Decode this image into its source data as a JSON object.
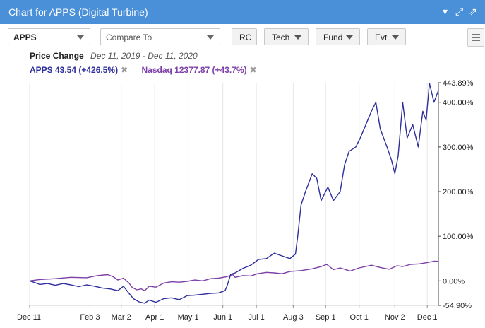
{
  "header": {
    "title": "Chart for APPS (Digital Turbine)",
    "controls": {
      "collapse_icon": "caret-down-icon",
      "expand_icon": "expand-icon",
      "popout_icon": "external-link-icon"
    }
  },
  "toolbar": {
    "symbol": "APPS",
    "compare_placeholder": "Compare To",
    "rc_label": "RC",
    "tech_label": "Tech",
    "fund_label": "Fund",
    "evt_label": "Evt",
    "menu_icon": "hamburger-icon"
  },
  "price_change": {
    "label": "Price Change",
    "range": "Dec 11, 2019 - Dec 11, 2020"
  },
  "legend": {
    "apps": "APPS 43.54 (+426.5%)",
    "nasdaq": "Nasdaq 12377.87 (+43.7%)"
  },
  "colors": {
    "apps": "#2e2e9e",
    "nasdaq": "#7d3fa8",
    "header": "#4a90d9"
  },
  "chart_data": {
    "type": "line",
    "ylim": [
      -54.9,
      443.89
    ],
    "y_ticks": [
      {
        "value": 443.89,
        "label": "443.89%"
      },
      {
        "value": 400,
        "label": "400.00%"
      },
      {
        "value": 300,
        "label": "300.00%"
      },
      {
        "value": 200,
        "label": "200.00%"
      },
      {
        "value": 100,
        "label": "100.00%"
      },
      {
        "value": 0,
        "label": "0.00%"
      },
      {
        "value": -54.9,
        "label": "-54.90%"
      }
    ],
    "x_range": [
      "2019-12-11",
      "2020-12-11"
    ],
    "x_ticks": [
      {
        "date": "2019-12-11",
        "label": "Dec 11"
      },
      {
        "date": "2020-02-03",
        "label": "Feb 3"
      },
      {
        "date": "2020-03-02",
        "label": "Mar 2"
      },
      {
        "date": "2020-04-01",
        "label": "Apr 1"
      },
      {
        "date": "2020-05-01",
        "label": "May 1"
      },
      {
        "date": "2020-06-01",
        "label": "Jun 1"
      },
      {
        "date": "2020-07-01",
        "label": "Jul 1"
      },
      {
        "date": "2020-08-03",
        "label": "Aug 3"
      },
      {
        "date": "2020-09-01",
        "label": "Sep 1"
      },
      {
        "date": "2020-10-01",
        "label": "Oct 1"
      },
      {
        "date": "2020-11-02",
        "label": "Nov 2"
      },
      {
        "date": "2020-12-01",
        "label": "Dec 1"
      }
    ],
    "series": [
      {
        "name": "APPS 43.54 (+426.5%)",
        "points": [
          [
            "2019-12-11",
            0
          ],
          [
            "2019-12-16",
            -4
          ],
          [
            "2019-12-20",
            -8
          ],
          [
            "2019-12-27",
            -6
          ],
          [
            "2020-01-03",
            -10
          ],
          [
            "2020-01-10",
            -6
          ],
          [
            "2020-01-17",
            -9
          ],
          [
            "2020-01-24",
            -13
          ],
          [
            "2020-01-31",
            -9
          ],
          [
            "2020-02-07",
            -12
          ],
          [
            "2020-02-14",
            -16
          ],
          [
            "2020-02-21",
            -18
          ],
          [
            "2020-02-28",
            -22
          ],
          [
            "2020-03-04",
            -12
          ],
          [
            "2020-03-09",
            -28
          ],
          [
            "2020-03-13",
            -40
          ],
          [
            "2020-03-18",
            -47
          ],
          [
            "2020-03-23",
            -50
          ],
          [
            "2020-03-27",
            -43
          ],
          [
            "2020-04-02",
            -48
          ],
          [
            "2020-04-09",
            -40
          ],
          [
            "2020-04-16",
            -38
          ],
          [
            "2020-04-23",
            -42
          ],
          [
            "2020-04-30",
            -33
          ],
          [
            "2020-05-07",
            -32
          ],
          [
            "2020-05-14",
            -30
          ],
          [
            "2020-05-21",
            -28
          ],
          [
            "2020-05-28",
            -27
          ],
          [
            "2020-06-03",
            -22
          ],
          [
            "2020-06-05",
            -10
          ],
          [
            "2020-06-08",
            15
          ],
          [
            "2020-06-12",
            18
          ],
          [
            "2020-06-19",
            28
          ],
          [
            "2020-06-26",
            35
          ],
          [
            "2020-07-03",
            48
          ],
          [
            "2020-07-10",
            50
          ],
          [
            "2020-07-17",
            62
          ],
          [
            "2020-07-24",
            56
          ],
          [
            "2020-07-31",
            50
          ],
          [
            "2020-08-05",
            60
          ],
          [
            "2020-08-07",
            100
          ],
          [
            "2020-08-10",
            170
          ],
          [
            "2020-08-14",
            200
          ],
          [
            "2020-08-20",
            240
          ],
          [
            "2020-08-24",
            230
          ],
          [
            "2020-08-28",
            180
          ],
          [
            "2020-09-03",
            210
          ],
          [
            "2020-09-08",
            180
          ],
          [
            "2020-09-14",
            200
          ],
          [
            "2020-09-18",
            260
          ],
          [
            "2020-09-22",
            290
          ],
          [
            "2020-09-28",
            300
          ],
          [
            "2020-10-02",
            320
          ],
          [
            "2020-10-07",
            350
          ],
          [
            "2020-10-12",
            380
          ],
          [
            "2020-10-16",
            400
          ],
          [
            "2020-10-20",
            340
          ],
          [
            "2020-10-26",
            300
          ],
          [
            "2020-10-30",
            270
          ],
          [
            "2020-11-02",
            240
          ],
          [
            "2020-11-05",
            280
          ],
          [
            "2020-11-09",
            400
          ],
          [
            "2020-11-13",
            320
          ],
          [
            "2020-11-18",
            350
          ],
          [
            "2020-11-23",
            300
          ],
          [
            "2020-11-27",
            380
          ],
          [
            "2020-11-30",
            360
          ],
          [
            "2020-12-03",
            443
          ],
          [
            "2020-12-07",
            400
          ],
          [
            "2020-12-11",
            426.5
          ]
        ]
      },
      {
        "name": "Nasdaq 12377.87 (+43.7%)",
        "points": [
          [
            "2019-12-11",
            0
          ],
          [
            "2019-12-20",
            3
          ],
          [
            "2020-01-03",
            5
          ],
          [
            "2020-01-17",
            8
          ],
          [
            "2020-01-31",
            7
          ],
          [
            "2020-02-10",
            12
          ],
          [
            "2020-02-19",
            14
          ],
          [
            "2020-02-24",
            9
          ],
          [
            "2020-02-28",
            2
          ],
          [
            "2020-03-04",
            6
          ],
          [
            "2020-03-09",
            -5
          ],
          [
            "2020-03-12",
            -15
          ],
          [
            "2020-03-16",
            -20
          ],
          [
            "2020-03-20",
            -18
          ],
          [
            "2020-03-23",
            -22
          ],
          [
            "2020-03-27",
            -12
          ],
          [
            "2020-04-02",
            -14
          ],
          [
            "2020-04-09",
            -5
          ],
          [
            "2020-04-16",
            -2
          ],
          [
            "2020-04-23",
            -3
          ],
          [
            "2020-04-30",
            -1
          ],
          [
            "2020-05-07",
            2
          ],
          [
            "2020-05-14",
            0
          ],
          [
            "2020-05-21",
            5
          ],
          [
            "2020-05-28",
            6
          ],
          [
            "2020-06-04",
            9
          ],
          [
            "2020-06-10",
            14
          ],
          [
            "2020-06-12",
            8
          ],
          [
            "2020-06-19",
            12
          ],
          [
            "2020-06-26",
            11
          ],
          [
            "2020-07-02",
            16
          ],
          [
            "2020-07-10",
            19
          ],
          [
            "2020-07-17",
            18
          ],
          [
            "2020-07-24",
            16
          ],
          [
            "2020-07-31",
            21
          ],
          [
            "2020-08-10",
            23
          ],
          [
            "2020-08-20",
            27
          ],
          [
            "2020-08-28",
            32
          ],
          [
            "2020-09-02",
            37
          ],
          [
            "2020-09-08",
            25
          ],
          [
            "2020-09-14",
            29
          ],
          [
            "2020-09-23",
            22
          ],
          [
            "2020-10-01",
            29
          ],
          [
            "2020-10-12",
            35
          ],
          [
            "2020-10-20",
            30
          ],
          [
            "2020-10-28",
            26
          ],
          [
            "2020-11-04",
            34
          ],
          [
            "2020-11-09",
            32
          ],
          [
            "2020-11-16",
            37
          ],
          [
            "2020-11-24",
            38
          ],
          [
            "2020-12-01",
            41
          ],
          [
            "2020-12-07",
            44
          ],
          [
            "2020-12-11",
            43.7
          ]
        ]
      }
    ]
  }
}
